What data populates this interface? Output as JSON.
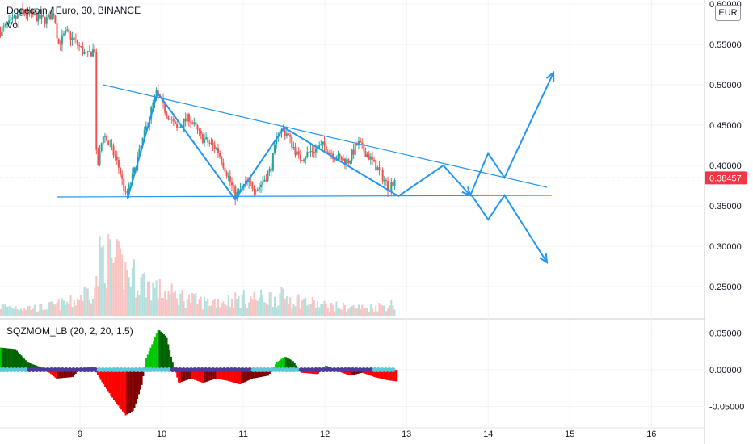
{
  "legend": {
    "symbol_title": "Dogecoin / Euro, 30, BINANCE",
    "volume_label": "Vol",
    "indicator_title": "SQZMOM_LB (20, 2, 20, 1.5)"
  },
  "currency": "EUR",
  "current_price": {
    "label": "0.38457",
    "value": 0.38457
  },
  "colors": {
    "up": "#26a69a",
    "down": "#ef5350",
    "drawing": "#2196f3",
    "price_tag": "#f23645",
    "mom_up_strong": "#00c800",
    "mom_up_weak": "#006400",
    "mom_dn_strong": "#ff0000",
    "mom_dn_weak": "#800000",
    "sqz_on": "#4b3b9a",
    "sqz_off": "#5bc8d8"
  },
  "chart_data": {
    "type": "candlestick",
    "price_axis": {
      "ylim": [
        0.21,
        0.605
      ],
      "ticks": [
        {
          "value": 0.6,
          "label": "0.60000"
        },
        {
          "value": 0.55,
          "label": "0.55000"
        },
        {
          "value": 0.5,
          "label": "0.50000"
        },
        {
          "value": 0.45,
          "label": "0.45000"
        },
        {
          "value": 0.4,
          "label": "0.40000"
        },
        {
          "value": 0.35,
          "label": "0.35000"
        },
        {
          "value": 0.3,
          "label": "0.30000"
        },
        {
          "value": 0.25,
          "label": "0.25000"
        }
      ]
    },
    "time_axis": {
      "xlim": [
        8.02,
        16.65
      ],
      "ticks": [
        {
          "value": 9,
          "label": "9"
        },
        {
          "value": 10,
          "label": "10"
        },
        {
          "value": 11,
          "label": "11"
        },
        {
          "value": 12,
          "label": "12"
        },
        {
          "value": 13,
          "label": "13"
        },
        {
          "value": 14,
          "label": "14"
        },
        {
          "value": 15,
          "label": "15"
        },
        {
          "value": 16,
          "label": "16"
        }
      ]
    },
    "price_path": [
      [
        8.02,
        0.565
      ],
      [
        8.15,
        0.575
      ],
      [
        8.3,
        0.59
      ],
      [
        8.45,
        0.585
      ],
      [
        8.6,
        0.58
      ],
      [
        8.7,
        0.59
      ],
      [
        8.75,
        0.55
      ],
      [
        8.85,
        0.565
      ],
      [
        9.0,
        0.548
      ],
      [
        9.1,
        0.535
      ],
      [
        9.2,
        0.545
      ],
      [
        9.22,
        0.39
      ],
      [
        9.3,
        0.44
      ],
      [
        9.45,
        0.41
      ],
      [
        9.5,
        0.395
      ],
      [
        9.58,
        0.36
      ],
      [
        9.7,
        0.4
      ],
      [
        9.85,
        0.455
      ],
      [
        9.95,
        0.49
      ],
      [
        10.05,
        0.47
      ],
      [
        10.2,
        0.445
      ],
      [
        10.35,
        0.46
      ],
      [
        10.5,
        0.435
      ],
      [
        10.7,
        0.42
      ],
      [
        10.8,
        0.395
      ],
      [
        10.92,
        0.362
      ],
      [
        11.05,
        0.378
      ],
      [
        11.2,
        0.372
      ],
      [
        11.35,
        0.395
      ],
      [
        11.45,
        0.445
      ],
      [
        11.55,
        0.44
      ],
      [
        11.7,
        0.408
      ],
      [
        11.85,
        0.418
      ],
      [
        12.0,
        0.425
      ],
      [
        12.15,
        0.41
      ],
      [
        12.3,
        0.405
      ],
      [
        12.42,
        0.428
      ],
      [
        12.55,
        0.412
      ],
      [
        12.7,
        0.39
      ],
      [
        12.8,
        0.372
      ],
      [
        12.87,
        0.384
      ]
    ],
    "volume_axis": {
      "ylim": [
        0,
        1
      ]
    },
    "volume_profile": [
      [
        8.02,
        0.15
      ],
      [
        8.5,
        0.12
      ],
      [
        8.9,
        0.2
      ],
      [
        9.2,
        0.45
      ],
      [
        9.25,
        0.9
      ],
      [
        9.6,
        0.6
      ],
      [
        10.0,
        0.35
      ],
      [
        10.5,
        0.2
      ],
      [
        11.0,
        0.25
      ],
      [
        11.5,
        0.28
      ],
      [
        12.0,
        0.15
      ],
      [
        12.5,
        0.12
      ],
      [
        12.87,
        0.18
      ]
    ],
    "momentum_axis": {
      "ylim": [
        -0.068,
        0.068
      ],
      "ticks": [
        {
          "value": 0.05,
          "label": "0.05000"
        },
        {
          "value": 0.0,
          "label": "0.00000"
        },
        {
          "value": -0.05,
          "label": "-0.05000"
        }
      ]
    },
    "momentum_path": [
      [
        8.02,
        0.03
      ],
      [
        8.2,
        0.028
      ],
      [
        8.35,
        0.01
      ],
      [
        8.55,
        0.002
      ],
      [
        8.7,
        -0.012
      ],
      [
        8.9,
        -0.01
      ],
      [
        9.0,
        0.002
      ],
      [
        9.15,
        0.004
      ],
      [
        9.25,
        -0.015
      ],
      [
        9.4,
        -0.04
      ],
      [
        9.55,
        -0.062
      ],
      [
        9.65,
        -0.055
      ],
      [
        9.75,
        -0.02
      ],
      [
        9.8,
        0.015
      ],
      [
        9.95,
        0.055
      ],
      [
        10.05,
        0.045
      ],
      [
        10.12,
        0.012
      ],
      [
        10.2,
        -0.018
      ],
      [
        10.35,
        -0.012
      ],
      [
        10.5,
        -0.018
      ],
      [
        10.65,
        -0.012
      ],
      [
        10.8,
        -0.015
      ],
      [
        10.95,
        -0.02
      ],
      [
        11.1,
        -0.012
      ],
      [
        11.3,
        -0.008
      ],
      [
        11.4,
        0.01
      ],
      [
        11.5,
        0.018
      ],
      [
        11.6,
        0.012
      ],
      [
        11.7,
        -0.004
      ],
      [
        11.9,
        -0.006
      ],
      [
        12.0,
        0.006
      ],
      [
        12.15,
        -0.002
      ],
      [
        12.3,
        -0.008
      ],
      [
        12.45,
        -0.004
      ],
      [
        12.6,
        -0.01
      ],
      [
        12.75,
        -0.014
      ],
      [
        12.87,
        -0.016
      ]
    ],
    "drawings": [
      {
        "name": "triangle-upper-trendline",
        "points": [
          [
            9.28,
            0.5
          ],
          [
            14.72,
            0.373
          ]
        ]
      },
      {
        "name": "triangle-support-line",
        "points": [
          [
            8.72,
            0.361
          ],
          [
            14.78,
            0.363
          ]
        ]
      },
      {
        "name": "zigzag-wave",
        "points": [
          [
            9.58,
            0.358
          ],
          [
            9.95,
            0.49
          ],
          [
            10.9,
            0.358
          ],
          [
            11.5,
            0.447
          ],
          [
            12.9,
            0.362
          ],
          [
            13.45,
            0.4
          ],
          [
            13.78,
            0.363
          ]
        ]
      },
      {
        "name": "bullish-scenario-path",
        "points": [
          [
            13.78,
            0.363
          ],
          [
            14.0,
            0.415
          ],
          [
            14.2,
            0.385
          ],
          [
            14.8,
            0.515
          ]
        ]
      },
      {
        "name": "bearish-scenario-path",
        "points": [
          [
            13.8,
            0.363
          ],
          [
            14.0,
            0.333
          ],
          [
            14.2,
            0.363
          ],
          [
            14.72,
            0.28
          ]
        ]
      }
    ]
  }
}
